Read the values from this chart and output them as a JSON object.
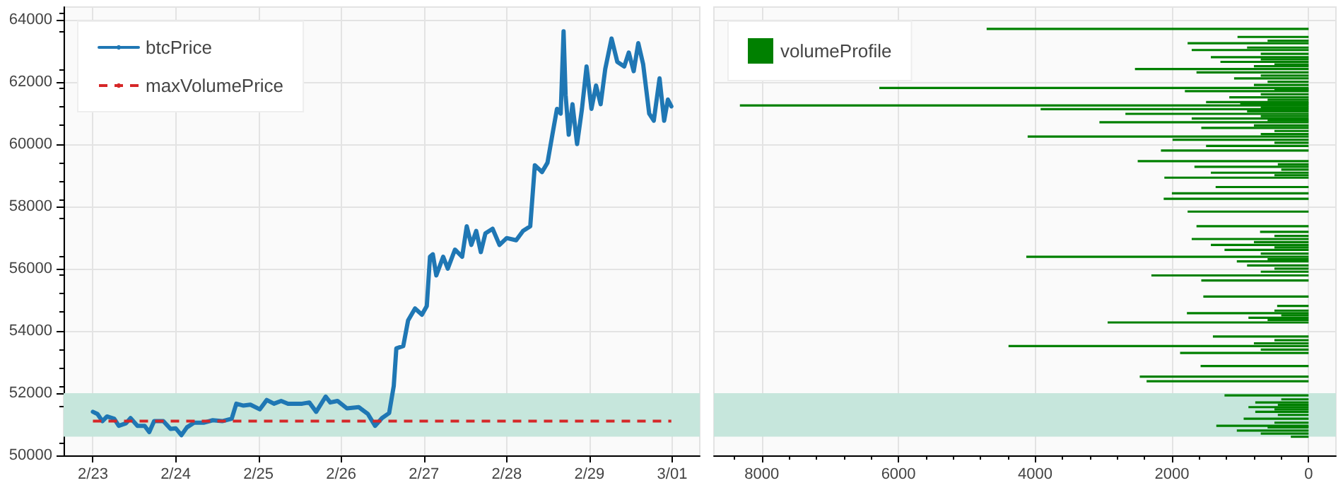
{
  "chart_data": [
    {
      "type": "line",
      "x": [
        "--02-23T00:00",
        "--02-23T01:20",
        "--02-23T02:45",
        "--02-23T04:05",
        "--02-23T06:10",
        "--02-23T07:30",
        "--02-23T09:35",
        "--02-23T10:55",
        "--02-23T12:55",
        "--02-23T15:00",
        "--02-23T16:20",
        "--02-23T17:45",
        "--02-23T20:25",
        "--02-23T22:30",
        "--02-24T00:00",
        "--02-24T01:40",
        "--02-24T03:15",
        "--02-24T05:20",
        "--02-24T08:05",
        "--02-24T10:45",
        "--02-24T13:30",
        "--02-24T16:15",
        "--02-24T17:35",
        "--02-24T19:40",
        "--02-24T21:40",
        "--02-25T00:25",
        "--02-25T02:25",
        "--02-25T04:30",
        "--02-25T06:35",
        "--02-25T08:35",
        "--02-25T12:40",
        "--02-25T14:45",
        "--02-25T16:45",
        "--02-25T19:30",
        "--02-25T20:50",
        "--02-25T22:55",
        "--02-26T01:40",
        "--02-26T05:05",
        "--02-26T07:45",
        "--02-26T09:50",
        "--02-26T11:50",
        "--02-26T13:55",
        "--02-26T15:15",
        "--02-26T16:00",
        "--02-26T18:00",
        "--02-26T19:25",
        "--02-26T21:25",
        "--02-26T23:25",
        "--02-27T00:50",
        "--02-27T01:45",
        "--02-27T02:35",
        "--02-27T03:35",
        "--02-27T05:35",
        "--02-27T06:55",
        "--02-27T09:00",
        "--02-27T11:05",
        "--02-27T12:25",
        "--02-27T13:45",
        "--02-27T15:10",
        "--02-27T16:30",
        "--02-27T17:50",
        "--02-27T19:55",
        "--02-27T21:55",
        "--02-28T00:00",
        "--02-28T02:45",
        "--02-28T04:45",
        "--02-28T06:50",
        "--02-28T08:10",
        "--02-28T10:15",
        "--02-28T11:50",
        "--02-28T13:15",
        "--02-28T14:35",
        "--02-28T15:40",
        "--02-28T16:30",
        "--02-28T17:05",
        "--02-28T18:00",
        "--02-28T19:05",
        "--02-28T20:25",
        "--02-28T21:50",
        "--02-28T23:10",
        "--02-29T00:35",
        "--02-29T01:55",
        "--02-29T03:15",
        "--02-29T04:35",
        "--02-29T06:25",
        "--02-29T08:05",
        "--02-29T10:05",
        "--02-29T11:25",
        "--02-29T12:50",
        "--02-29T14:10",
        "--02-29T15:35",
        "--02-29T17:20",
        "--02-29T18:40",
        "--02-29T20:20",
        "--02-29T21:40",
        "--02-29T22:45",
        "--02-29T23:45"
      ],
      "series": [
        {
          "name": "btcPrice",
          "color": "#1f77b4",
          "values": [
            51400,
            51330,
            51100,
            51250,
            51180,
            50950,
            51030,
            51200,
            50950,
            50950,
            50750,
            51100,
            51100,
            50850,
            50870,
            50650,
            50900,
            51050,
            51050,
            51130,
            51100,
            51180,
            51660,
            51600,
            51630,
            51480,
            51780,
            51660,
            51750,
            51660,
            51660,
            51700,
            51400,
            51890,
            51700,
            51750,
            51510,
            51550,
            51330,
            50950,
            51200,
            51360,
            52230,
            53440,
            53510,
            54340,
            54720,
            54520,
            54800,
            56380,
            56460,
            55780,
            56380,
            56000,
            56610,
            56380,
            57360,
            56760,
            57210,
            56530,
            57130,
            57280,
            56760,
            56980,
            56910,
            57210,
            57360,
            59320,
            59100,
            59400,
            60300,
            61130,
            60980,
            63620,
            61580,
            60300,
            61280,
            60000,
            61130,
            62490,
            61130,
            61880,
            61280,
            62410,
            63390,
            62640,
            62490,
            62940,
            62340,
            63240,
            62560,
            60980,
            60750,
            62110,
            60750,
            61430,
            61210
          ]
        }
      ],
      "xlim": [
        "--02-22T15:30",
        "--03-01T08:00"
      ],
      "xticks": [
        {
          "value": "--02-23",
          "label": "2/23"
        },
        {
          "value": "--02-24",
          "label": "2/24"
        },
        {
          "value": "--02-25",
          "label": "2/25"
        },
        {
          "value": "--02-26",
          "label": "2/26"
        },
        {
          "value": "--02-27",
          "label": "2/27"
        },
        {
          "value": "--02-28",
          "label": "2/28"
        },
        {
          "value": "--02-29",
          "label": "2/29"
        },
        {
          "value": "--03-01",
          "label": "3/01"
        }
      ],
      "ylim": [
        50000,
        64400
      ],
      "yticks": [
        50000,
        52000,
        54000,
        56000,
        58000,
        60000,
        62000,
        64000
      ],
      "ref_lines": [
        {
          "axis": "y",
          "value": 51100,
          "label": "maxVolumePrice",
          "color": "#d62728",
          "line_style": "dashed"
        }
      ],
      "bands": [
        {
          "axis": "y",
          "from": 50600,
          "to": 52000,
          "color": "#c6e6dc"
        }
      ],
      "grid": true,
      "legend": "top left",
      "marker": "none",
      "line_style": "solid"
    },
    {
      "type": "bar",
      "orientation": "horizontal",
      "x": [
        50600,
        50700,
        50800,
        50900,
        50950,
        51050,
        51180,
        51300,
        51400,
        51480,
        51550,
        51620,
        51700,
        51800,
        51930,
        52380,
        52530,
        52870,
        53290,
        53400,
        53510,
        53600,
        53700,
        53820,
        54270,
        54350,
        54420,
        54500,
        54570,
        54650,
        54800,
        55100,
        55620,
        55780,
        55900,
        56000,
        56100,
        56230,
        56300,
        56380,
        56480,
        56600,
        56680,
        56760,
        56850,
        56950,
        57050,
        57180,
        57360,
        57830,
        58240,
        58420,
        58620,
        58920,
        59000,
        59080,
        59180,
        59270,
        59350,
        59450,
        59790,
        59940,
        60040,
        60140,
        60240,
        60320,
        60420,
        60520,
        60600,
        60700,
        60760,
        60820,
        60900,
        60970,
        61050,
        61120,
        61180,
        61240,
        61300,
        61350,
        61420,
        61500,
        61600,
        61700,
        61750,
        61800,
        61900,
        62000,
        62110,
        62200,
        62300,
        62410,
        62500,
        62560,
        62640,
        62720,
        62790,
        62900,
        63020,
        63100,
        63240,
        63320,
        63440,
        63700
      ],
      "series": [
        {
          "name": "volumeProfile",
          "color": "#008000",
          "values": [
            260,
            700,
            1050,
            600,
            1350,
            500,
            950,
            450,
            780,
            500,
            880,
            450,
            780,
            400,
            1230,
            2370,
            2470,
            1580,
            1880,
            700,
            4390,
            800,
            500,
            1400,
            2940,
            600,
            880,
            400,
            1780,
            500,
            460,
            1540,
            1570,
            2300,
            700,
            500,
            900,
            1050,
            600,
            4130,
            700,
            1230,
            500,
            1430,
            800,
            1710,
            500,
            710,
            1640,
            1770,
            2120,
            2000,
            1360,
            2110,
            500,
            1430,
            400,
            1670,
            450,
            2500,
            2160,
            1500,
            500,
            1990,
            4110,
            700,
            500,
            1570,
            800,
            3060,
            600,
            1710,
            700,
            2680,
            900,
            3920,
            700,
            8320,
            1000,
            1500,
            600,
            1160,
            700,
            1810,
            500,
            6280,
            800,
            600,
            1090,
            700,
            1640,
            2540,
            800,
            500,
            1290,
            700,
            1430,
            700,
            1710,
            900,
            1770,
            600,
            1040,
            4710
          ]
        }
      ],
      "xlim": [
        8700,
        -400
      ],
      "xticks": [
        8000,
        6000,
        4000,
        2000,
        0
      ],
      "ylim": [
        50000,
        64400
      ],
      "yticks": [
        50000,
        52000,
        54000,
        56000,
        58000,
        60000,
        62000,
        64000
      ],
      "bands": [
        {
          "axis": "y",
          "from": 50600,
          "to": 52000,
          "color": "#c6e6dc"
        }
      ],
      "tick_labels": "x",
      "grid": true,
      "legend": "top left"
    }
  ]
}
